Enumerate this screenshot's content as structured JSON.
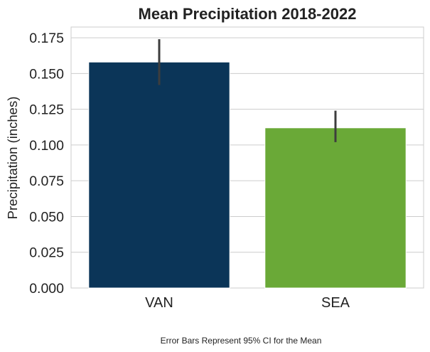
{
  "chart_data": {
    "type": "bar",
    "title": "Mean Precipitation 2018-2022",
    "xlabel": "",
    "ylabel": "Precipitation (inches)",
    "categories": [
      "VAN",
      "SEA"
    ],
    "values": [
      0.158,
      0.112
    ],
    "error_bars": [
      {
        "low": 0.142,
        "high": 0.174
      },
      {
        "low": 0.102,
        "high": 0.124
      }
    ],
    "colors": [
      "#0b3558",
      "#6aa937"
    ],
    "ylim": [
      0,
      0.1825
    ],
    "yticks": [
      0.0,
      0.025,
      0.05,
      0.075,
      0.1,
      0.125,
      0.15,
      0.175
    ],
    "ytick_labels": [
      "0.000",
      "0.025",
      "0.050",
      "0.075",
      "0.100",
      "0.125",
      "0.150",
      "0.175"
    ],
    "grid": true,
    "legend": "none",
    "footnote": "Error Bars Represent 95% CI for the Mean"
  }
}
